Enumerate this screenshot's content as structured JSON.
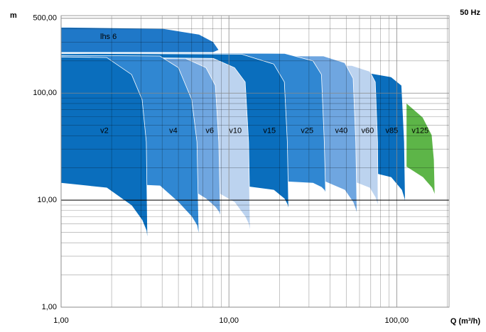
{
  "chart_data": {
    "type": "range_area",
    "ylabel": "m",
    "xlabel": "Q (m³/h)",
    "annotation": "50 Hz",
    "log_x": true,
    "log_y": true,
    "xlim": [
      1,
      205
    ],
    "ylim": [
      1,
      530
    ],
    "xticks": [
      {
        "value": 1,
        "label": "1,00"
      },
      {
        "value": 10,
        "label": "10,00"
      },
      {
        "value": 100,
        "label": "100,00"
      }
    ],
    "yticks": [
      {
        "value": 1,
        "label": "1,00"
      },
      {
        "value": 10,
        "label": "10,00"
      },
      {
        "value": 100,
        "label": "100,00"
      },
      {
        "value": 500,
        "label": "500,00"
      }
    ],
    "x_minor_grid": [
      2,
      3,
      4,
      5,
      6,
      7,
      8,
      9,
      20,
      30,
      40,
      50,
      60,
      70,
      80,
      90,
      200
    ],
    "y_minor_grid": [
      2,
      3,
      4,
      5,
      6,
      7,
      8,
      9,
      20,
      30,
      40,
      50,
      60,
      70,
      80,
      90,
      200,
      300,
      400
    ],
    "y_ref_line": 10,
    "series": [
      {
        "name": "lhs 6",
        "color": "#1f78c8",
        "x": [
          1,
          4.08,
          6.63,
          8.06,
          8.72
        ],
        "upper": [
          413,
          400,
          355,
          302,
          253
        ],
        "lower": [
          240,
          240,
          240,
          240,
          253
        ]
      },
      {
        "name": "v2",
        "color": "#0a6ebd",
        "x": [
          1,
          1.87,
          2.63,
          3.04,
          3.22,
          3.28
        ],
        "upper": [
          218,
          215,
          149,
          87,
          35,
          4.1
        ],
        "lower": [
          14.4,
          13,
          8.9,
          6.5,
          5.2,
          4.1
        ]
      },
      {
        "name": "v4",
        "color": "#3087d2",
        "x": [
          1,
          3.88,
          5.0,
          6.0,
          6.45,
          6.63
        ],
        "upper": [
          225,
          222,
          173,
          87,
          35,
          4.6
        ],
        "lower": [
          15,
          13.6,
          9.55,
          7.0,
          5.8,
          4.6
        ]
      },
      {
        "name": "v6",
        "color": "#6fa6e0",
        "x": [
          1,
          5.5,
          7.3,
          8.3,
          8.7,
          8.9
        ],
        "upper": [
          211,
          211,
          173,
          118,
          35,
          7.05
        ],
        "lower": [
          15.5,
          13.6,
          10.3,
          8.6,
          7.8,
          7.05
        ]
      },
      {
        "name": "v10",
        "color": "#bcd3ef",
        "x": [
          1,
          8.06,
          10.8,
          12.5,
          13.1,
          13.4
        ],
        "upper": [
          218,
          211,
          173,
          127,
          35,
          5.0
        ],
        "lower": [
          16,
          12.4,
          9.55,
          7.0,
          6.0,
          5.0
        ]
      },
      {
        "name": "v15",
        "color": "#0a6ebd",
        "x": [
          1,
          11.9,
          18.5,
          21.4,
          22.3,
          22.7
        ],
        "upper": [
          235,
          231,
          187,
          127,
          35,
          8.1
        ],
        "lower": [
          17,
          13.6,
          12.4,
          10.3,
          9.1,
          8.1
        ]
      },
      {
        "name": "v25",
        "color": "#3087d2",
        "x": [
          1,
          21.4,
          31.7,
          35.6,
          37,
          37.7
        ],
        "upper": [
          238,
          235,
          200,
          149,
          35,
          11.6
        ],
        "lower": [
          17,
          14.9,
          14.4,
          13.2,
          12.4,
          11.6
        ]
      },
      {
        "name": "v40",
        "color": "#6fa6e0",
        "x": [
          1,
          36.6,
          49,
          55,
          57,
          58
        ],
        "upper": [
          225,
          222,
          192,
          137,
          35,
          7.3
        ],
        "lower": [
          16,
          15.1,
          12.4,
          9.55,
          8.2,
          7.3
        ]
      },
      {
        "name": "v60",
        "color": "#bcd3ef",
        "x": [
          1,
          54,
          69,
          74.5,
          76.9,
          77.5
        ],
        "upper": [
          196,
          181,
          160,
          127,
          35,
          7.8
        ],
        "lower": [
          16,
          15.1,
          13,
          10.6,
          9.1,
          7.8
        ]
      },
      {
        "name": "v85",
        "color": "#0a6ebd",
        "x": [
          1,
          62.6,
          92.5,
          107,
          111,
          112.5
        ],
        "upper": [
          160,
          158,
          142,
          118,
          35,
          8.85
        ],
        "lower": [
          16,
          19,
          16.3,
          12.4,
          10.3,
          8.85
        ]
      },
      {
        "name": "v125",
        "color": "#5db548",
        "x": [
          114,
          143,
          162,
          167,
          169
        ],
        "upper": [
          81,
          59.5,
          40.6,
          23.8,
          10.6
        ],
        "lower": [
          20.5,
          16.3,
          13,
          11.6,
          10.6
        ]
      }
    ]
  }
}
